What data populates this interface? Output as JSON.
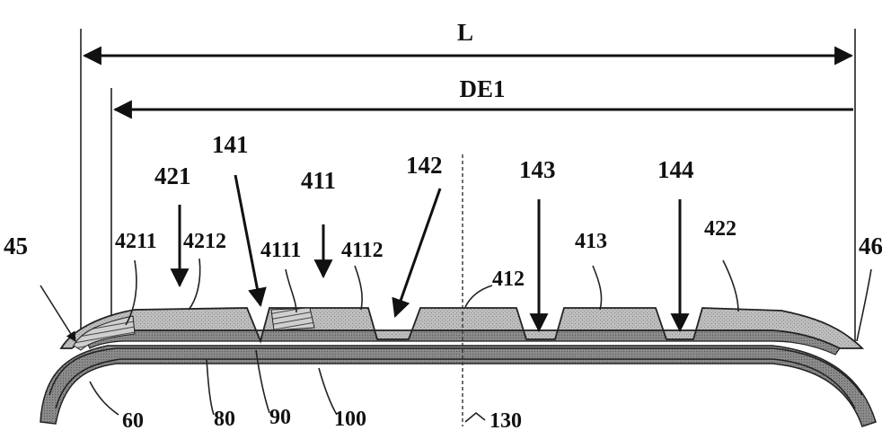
{
  "labels": {
    "overall_width": "L",
    "inner_width": "DE1",
    "shoulder_left": "45",
    "shoulder_right": "46",
    "groove_141": "141",
    "groove_142": "142",
    "groove_143": "143",
    "groove_144": "144",
    "rib_421": "421",
    "rib_411": "411",
    "rib_4211": "4211",
    "rib_4212": "4212",
    "rib_4111": "4111",
    "rib_4112": "4112",
    "rib_412": "412",
    "rib_413": "413",
    "rib_422": "422",
    "layer_60": "60",
    "layer_80": "80",
    "layer_90": "90",
    "layer_100": "100",
    "centerline_130": "130"
  }
}
